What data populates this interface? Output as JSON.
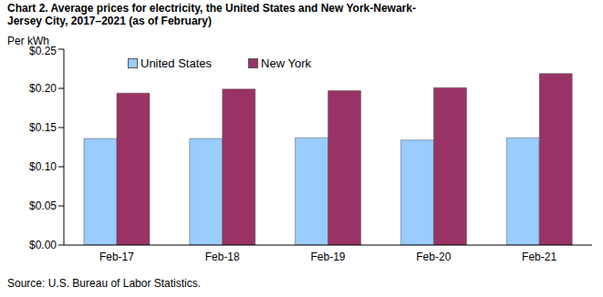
{
  "chart_data": {
    "type": "bar",
    "title": "Chart 2. Average prices for electricity, the United States and New York-Newark-Jersey City, 2017–2021 (as of February)",
    "y_label": "Per kWh",
    "source": "Source: U.S. Bureau of Labor Statistics.",
    "categories": [
      "Feb-17",
      "Feb-18",
      "Feb-19",
      "Feb-20",
      "Feb-21"
    ],
    "series": [
      {
        "name": "United States",
        "color": "#99ccff",
        "values": [
          0.136,
          0.136,
          0.137,
          0.134,
          0.137
        ]
      },
      {
        "name": "New York",
        "color": "#993366",
        "values": [
          0.194,
          0.199,
          0.197,
          0.201,
          0.219
        ]
      }
    ],
    "ylim": [
      0,
      0.25
    ],
    "yticks": [
      {
        "value": 0,
        "label": "$0.00"
      },
      {
        "value": 0.05,
        "label": "$0.05"
      },
      {
        "value": 0.1,
        "label": "$0.10"
      },
      {
        "value": 0.15,
        "label": "$0.15"
      },
      {
        "value": 0.2,
        "label": "$0.20"
      },
      {
        "value": 0.25,
        "label": "$0.25"
      }
    ],
    "grid": false,
    "legend": "top-left"
  }
}
